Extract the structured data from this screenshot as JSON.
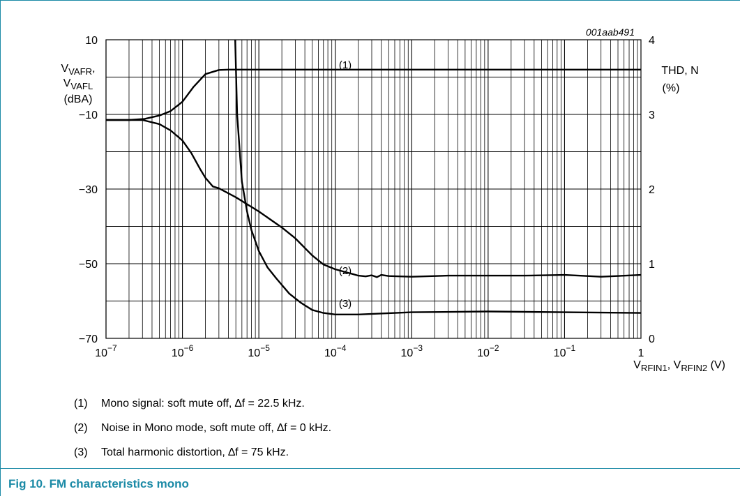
{
  "chart_data": {
    "type": "line",
    "code": "001aab491",
    "x_scale": "log",
    "xlim": [
      1e-07,
      1
    ],
    "x_ticks": [
      {
        "value": 1e-07,
        "base": "10",
        "exp": "−7"
      },
      {
        "value": 1e-06,
        "base": "10",
        "exp": "−6"
      },
      {
        "value": 1e-05,
        "base": "10",
        "exp": "−5"
      },
      {
        "value": 0.0001,
        "base": "10",
        "exp": "−4"
      },
      {
        "value": 0.001,
        "base": "10",
        "exp": "−3"
      },
      {
        "value": 0.01,
        "base": "10",
        "exp": "−2"
      },
      {
        "value": 0.1,
        "base": "10",
        "exp": "−1"
      },
      {
        "value": 1,
        "base": "1",
        "exp": ""
      }
    ],
    "xlabel": {
      "parts": [
        {
          "t": "V",
          "sub": false
        },
        {
          "t": "RFIN1",
          "sub": true
        },
        {
          "t": ", V",
          "sub": false
        },
        {
          "t": "RFIN2",
          "sub": true
        },
        {
          "t": " (V)",
          "sub": false
        }
      ]
    },
    "ylim": [
      -70,
      10
    ],
    "y_ticks": [
      {
        "value": 10,
        "label": "10"
      },
      {
        "value": -10,
        "label": "−10"
      },
      {
        "value": -30,
        "label": "−30"
      },
      {
        "value": -50,
        "label": "−50"
      },
      {
        "value": -70,
        "label": "−70"
      }
    ],
    "ylabel_left": {
      "lines": [
        [
          {
            "t": "V",
            "sub": false
          },
          {
            "t": "VAFR",
            "sub": true
          },
          {
            "t": ",",
            "sub": false
          }
        ],
        [
          {
            "t": "V",
            "sub": false
          },
          {
            "t": "VAFL",
            "sub": true
          }
        ],
        [
          {
            "t": "(dBA)",
            "sub": false
          }
        ]
      ]
    },
    "y2lim": [
      0,
      4
    ],
    "y2_ticks": [
      {
        "value": 4,
        "label": "4"
      },
      {
        "value": 3,
        "label": "3"
      },
      {
        "value": 2,
        "label": "2"
      },
      {
        "value": 1,
        "label": "1"
      },
      {
        "value": 0,
        "label": "0"
      }
    ],
    "ylabel_right": [
      "THD, N",
      "(%)"
    ],
    "grid": true,
    "series": [
      {
        "name": "(1)",
        "axis": "left",
        "x": [
          1e-07,
          2e-07,
          3.2e-07,
          5e-07,
          7e-07,
          1e-06,
          1.4e-06,
          2e-06,
          3e-06,
          4e-06,
          5e-06,
          1e-05,
          0.0001,
          0.01,
          1
        ],
        "y": [
          -11.5,
          -11.5,
          -11.2,
          -10.3,
          -9.1,
          -6.6,
          -2.6,
          0.8,
          1.9,
          2.0,
          2.0,
          2.0,
          2.0,
          2.0,
          2.0
        ]
      },
      {
        "name": "(2)",
        "axis": "left",
        "x": [
          1e-07,
          3e-07,
          5e-07,
          7e-07,
          1e-06,
          1.3e-06,
          1.7e-06,
          2e-06,
          2.5e-06,
          3e-06,
          5e-06,
          1e-05,
          2e-05,
          3e-05,
          5e-05,
          7e-05,
          0.0001,
          0.0002,
          0.00025,
          0.0003,
          0.00035,
          0.0004,
          0.0005,
          0.001,
          0.003,
          0.01,
          0.03,
          0.1,
          0.2,
          0.3,
          1
        ],
        "y": [
          -11.5,
          -11.5,
          -12.6,
          -14.3,
          -17.0,
          -20.3,
          -24.6,
          -27.0,
          -29.3,
          -29.8,
          -32.2,
          -36.0,
          -40.3,
          -43.2,
          -47.8,
          -50.2,
          -51.5,
          -53.2,
          -53.4,
          -53.1,
          -53.6,
          -53.0,
          -53.3,
          -53.5,
          -53.2,
          -53.2,
          -53.2,
          -53.0,
          -53.3,
          -53.5,
          -53.0
        ]
      },
      {
        "name": "(3)",
        "axis": "right",
        "x": [
          4.9e-06,
          5.2e-06,
          6e-06,
          7e-06,
          8e-06,
          1e-05,
          1.3e-05,
          1.7e-05,
          2.5e-05,
          3.5e-05,
          5e-05,
          7e-05,
          0.0001,
          0.0002,
          0.001,
          0.01,
          0.1,
          1
        ],
        "y": [
          4.0,
          3.0,
          2.1,
          1.7,
          1.45,
          1.17,
          0.95,
          0.8,
          0.6,
          0.48,
          0.38,
          0.34,
          0.32,
          0.32,
          0.35,
          0.36,
          0.35,
          0.34
        ]
      }
    ],
    "annotations": [
      "(1)",
      "(2)",
      "(3)"
    ]
  },
  "notes": [
    {
      "num": "(1)",
      "text": "Mono signal: soft mute off, ∆f = 22.5 kHz."
    },
    {
      "num": "(2)",
      "text": "Noise in Mono mode, soft mute off, ∆f = 0 kHz."
    },
    {
      "num": "(3)",
      "text": "Total harmonic distortion, ∆f = 75 kHz."
    }
  ],
  "caption": "Fig 10. FM characteristics mono",
  "colors": {
    "accent": "#1b8aa6",
    "grid": "#000000",
    "line": "#000000"
  }
}
